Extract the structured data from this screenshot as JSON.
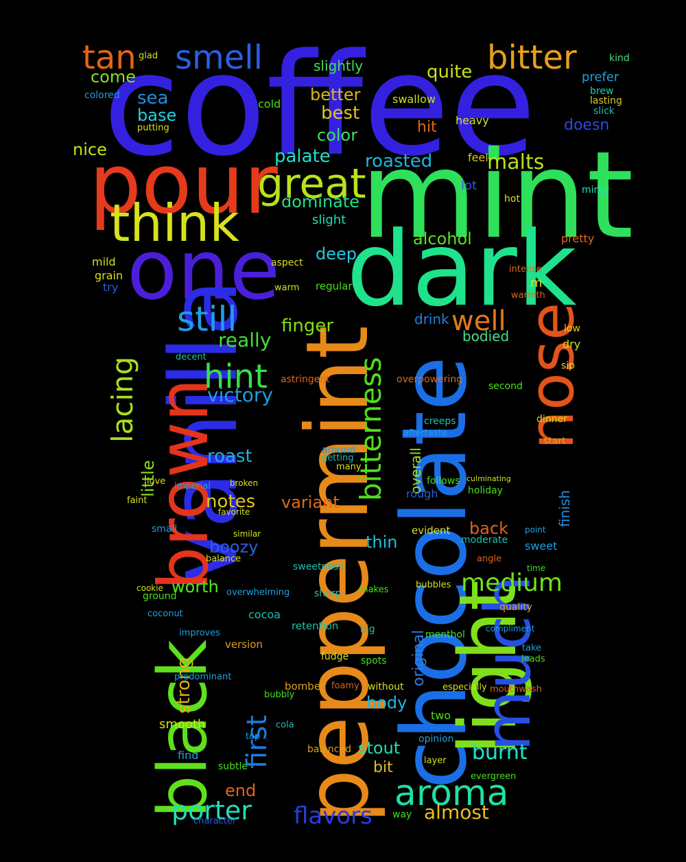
{
  "words": [
    {
      "text": "coffee",
      "color": "#3421e0"
    },
    {
      "text": "mint",
      "color": "#2fe05b"
    },
    {
      "text": "dark",
      "color": "#1fe28c"
    },
    {
      "text": "pour",
      "color": "#e63a1c"
    },
    {
      "text": "one",
      "color": "#4a1fd9"
    },
    {
      "text": "vanilla",
      "color": "#2a2ce6"
    },
    {
      "text": "black",
      "color": "#5ee01c"
    },
    {
      "text": "brown",
      "color": "#e3341c"
    },
    {
      "text": "peppermint",
      "color": "#e78a1a"
    },
    {
      "text": "chocolate",
      "color": "#1b6fe6"
    },
    {
      "text": "light",
      "color": "#7fe01a"
    },
    {
      "text": "much",
      "color": "#2650e3"
    },
    {
      "text": "nose",
      "color": "#e2541b"
    },
    {
      "text": "think",
      "color": "#d6e21b"
    },
    {
      "text": "great",
      "color": "#b9e21b"
    },
    {
      "text": "tan",
      "color": "#e3641b"
    },
    {
      "text": "smell",
      "color": "#2b5fe3"
    },
    {
      "text": "bitter",
      "color": "#e6a01b"
    },
    {
      "text": "still",
      "color": "#1f9fe6"
    },
    {
      "text": "hint",
      "color": "#35e04a"
    },
    {
      "text": "lacing",
      "color": "#a9e01c"
    },
    {
      "text": "aroma",
      "color": "#1fe0a5"
    },
    {
      "text": "porter",
      "color": "#1fe0b8"
    },
    {
      "text": "first",
      "color": "#1b7be0"
    },
    {
      "text": "flavors",
      "color": "#2a3de0"
    },
    {
      "text": "bitterness",
      "color": "#4ee01b"
    },
    {
      "text": "well",
      "color": "#e07a1b"
    },
    {
      "text": "medium",
      "color": "#72e01b"
    },
    {
      "text": "burnt",
      "color": "#1fe0c6"
    },
    {
      "text": "almost",
      "color": "#e6c21b"
    },
    {
      "text": "quite",
      "color": "#c9e01b"
    },
    {
      "text": "malts",
      "color": "#b8e01b"
    },
    {
      "text": "roasted",
      "color": "#1fb5e0"
    },
    {
      "text": "palate",
      "color": "#1fe0d2"
    },
    {
      "text": "dominate",
      "color": "#1fe08a"
    },
    {
      "text": "victory",
      "color": "#1f9ee0"
    },
    {
      "text": "really",
      "color": "#43e03a"
    },
    {
      "text": "finger",
      "color": "#7fe01b"
    },
    {
      "text": "color",
      "color": "#40e06a"
    },
    {
      "text": "best",
      "color": "#e0c51b"
    },
    {
      "text": "better",
      "color": "#e0b41b"
    },
    {
      "text": "sea",
      "color": "#1f90e0"
    },
    {
      "text": "base",
      "color": "#1fd3e0"
    },
    {
      "text": "come",
      "color": "#8ae01b"
    },
    {
      "text": "nice",
      "color": "#c6e01b"
    },
    {
      "text": "slightly",
      "color": "#40e05a"
    },
    {
      "text": "alcohol",
      "color": "#5ee01b"
    },
    {
      "text": "deep",
      "color": "#1fcbe0"
    },
    {
      "text": "slight",
      "color": "#1fe0bd"
    },
    {
      "text": "notes",
      "color": "#e0ca1b"
    },
    {
      "text": "roast",
      "color": "#1fb0e0"
    },
    {
      "text": "boozy",
      "color": "#2a60e0"
    },
    {
      "text": "worth",
      "color": "#49e01b"
    },
    {
      "text": "strong",
      "color": "#e0b01b"
    },
    {
      "text": "little",
      "color": "#8be01b"
    },
    {
      "text": "thin",
      "color": "#1fc0e0"
    },
    {
      "text": "original",
      "color": "#2f7de0"
    },
    {
      "text": "overall",
      "color": "#a1e01b"
    },
    {
      "text": "variant",
      "color": "#e06a1b"
    },
    {
      "text": "drink",
      "color": "#1f7fe0"
    },
    {
      "text": "bodied",
      "color": "#49e08a"
    },
    {
      "text": "finish",
      "color": "#1f8fe0"
    },
    {
      "text": "back",
      "color": "#e0641b"
    },
    {
      "text": "stout",
      "color": "#1fe0b0"
    },
    {
      "text": "body",
      "color": "#1fb8e0"
    },
    {
      "text": "bit",
      "color": "#e0c01b"
    },
    {
      "text": "end",
      "color": "#e0641b"
    },
    {
      "text": "smooth",
      "color": "#d6e01b"
    },
    {
      "text": "hit",
      "color": "#e0681b"
    },
    {
      "text": "cold",
      "color": "#49e01b"
    },
    {
      "text": "doesn",
      "color": "#2a4ce0"
    },
    {
      "text": "heavy",
      "color": "#d6e01b"
    },
    {
      "text": "swallow",
      "color": "#c9e01b"
    },
    {
      "text": "feel",
      "color": "#e0c51b"
    },
    {
      "text": "lot",
      "color": "#2a5ce0"
    },
    {
      "text": "hot",
      "color": "#e0e01b"
    },
    {
      "text": "minty",
      "color": "#1fe0b8"
    },
    {
      "text": "prefer",
      "color": "#1fa0e0"
    },
    {
      "text": "kind",
      "color": "#49e07a"
    },
    {
      "text": "brew",
      "color": "#1fd0b0"
    },
    {
      "text": "lasting",
      "color": "#e0d01b"
    },
    {
      "text": "slick",
      "color": "#1fc0b0"
    },
    {
      "text": "pretty",
      "color": "#e06a1b"
    },
    {
      "text": "intense",
      "color": "#e06a1b"
    },
    {
      "text": "warmth",
      "color": "#e06a1b"
    },
    {
      "text": "dry",
      "color": "#d6e01b"
    },
    {
      "text": "low",
      "color": "#e0d01b"
    },
    {
      "text": "sip",
      "color": "#d6e01b"
    },
    {
      "text": "second",
      "color": "#49e01b"
    },
    {
      "text": "dinner",
      "color": "#c9e01b"
    },
    {
      "text": "start",
      "color": "#e0a01b"
    },
    {
      "text": "sweet",
      "color": "#1fa0e0"
    },
    {
      "text": "moderate",
      "color": "#1fc0b0"
    },
    {
      "text": "holiday",
      "color": "#49e01b"
    },
    {
      "text": "rough",
      "color": "#2a5ce0"
    },
    {
      "text": "follows",
      "color": "#49e01b"
    },
    {
      "text": "quality",
      "color": "#e0a01b"
    },
    {
      "text": "bubbles",
      "color": "#d6e01b"
    },
    {
      "text": "menthol",
      "color": "#49e01b"
    },
    {
      "text": "mouthwash",
      "color": "#e0641b"
    },
    {
      "text": "leads",
      "color": "#49e01b"
    },
    {
      "text": "especially",
      "color": "#d6e01b"
    },
    {
      "text": "opinion",
      "color": "#1fa0e0"
    },
    {
      "text": "two",
      "color": "#49e01b"
    },
    {
      "text": "layer",
      "color": "#d6e01b"
    },
    {
      "text": "evergreen",
      "color": "#49e01b"
    },
    {
      "text": "balanced",
      "color": "#e0a01b"
    },
    {
      "text": "without",
      "color": "#d6e01b"
    },
    {
      "text": "fudge",
      "color": "#d6e01b"
    },
    {
      "text": "spots",
      "color": "#49e01b"
    },
    {
      "text": "big",
      "color": "#1fc0b0"
    },
    {
      "text": "cocoa",
      "color": "#1fc0b0"
    },
    {
      "text": "retention",
      "color": "#1fc0b0"
    },
    {
      "text": "version",
      "color": "#e0a01b"
    },
    {
      "text": "bomber",
      "color": "#e0a01b"
    },
    {
      "text": "foamy",
      "color": "#e0641b"
    },
    {
      "text": "bubbly",
      "color": "#49e01b"
    },
    {
      "text": "cola",
      "color": "#1fc0b0"
    },
    {
      "text": "find",
      "color": "#1fa0e0"
    },
    {
      "text": "subtle",
      "color": "#49e01b"
    },
    {
      "text": "character",
      "color": "#2a5ce0"
    },
    {
      "text": "way",
      "color": "#49e01b"
    },
    {
      "text": "predominant",
      "color": "#1fa0e0"
    },
    {
      "text": "overwhelming",
      "color": "#1fa0e0"
    },
    {
      "text": "sweetness",
      "color": "#1fc0b0"
    },
    {
      "text": "balance",
      "color": "#d6e01b"
    },
    {
      "text": "similar",
      "color": "#d6e01b"
    },
    {
      "text": "evident",
      "color": "#d6e01b"
    },
    {
      "text": "overpowering",
      "color": "#e06a1b"
    },
    {
      "text": "astringent",
      "color": "#e0641b"
    },
    {
      "text": "decent",
      "color": "#1fc0b0"
    },
    {
      "text": "mild",
      "color": "#d6e01b"
    },
    {
      "text": "grain",
      "color": "#d6e01b"
    },
    {
      "text": "try",
      "color": "#2a5ce0"
    },
    {
      "text": "m",
      "color": "#d6e01b"
    },
    {
      "text": "aspect",
      "color": "#d6e01b"
    },
    {
      "text": "regular",
      "color": "#49e01b"
    },
    {
      "text": "warm",
      "color": "#d6e01b"
    },
    {
      "text": "putting",
      "color": "#d6e01b"
    },
    {
      "text": "colored",
      "color": "#1fa0e0"
    },
    {
      "text": "glad",
      "color": "#d6e01b"
    },
    {
      "text": "imperial",
      "color": "#1fa0e0"
    },
    {
      "text": "love",
      "color": "#d6e01b"
    },
    {
      "text": "faint",
      "color": "#d6e01b"
    },
    {
      "text": "small",
      "color": "#1fa0e0"
    },
    {
      "text": "favorite",
      "color": "#d6e01b"
    },
    {
      "text": "broken",
      "color": "#d6e01b"
    },
    {
      "text": "creeps",
      "color": "#1fc0b0"
    },
    {
      "text": "aftertaste",
      "color": "#1fa0e0"
    },
    {
      "text": "many",
      "color": "#d6e01b"
    },
    {
      "text": "getting",
      "color": "#1fc0b0"
    },
    {
      "text": "around",
      "color": "#1fa0e0"
    },
    {
      "text": "sharp",
      "color": "#1fc0b0"
    },
    {
      "text": "makes",
      "color": "#49e01b"
    },
    {
      "text": "worth",
      "color": "#49e01b"
    },
    {
      "text": "ground",
      "color": "#49e01b"
    },
    {
      "text": "cookie",
      "color": "#d6e01b"
    },
    {
      "text": "coconut",
      "color": "#1fa0e0"
    },
    {
      "text": "improves",
      "color": "#1fa0e0"
    },
    {
      "text": "top",
      "color": "#1fa0e0"
    },
    {
      "text": "angle",
      "color": "#e0641b"
    },
    {
      "text": "time",
      "color": "#49e01b"
    },
    {
      "text": "point",
      "color": "#1fa0e0"
    },
    {
      "text": "culminating",
      "color": "#d6e01b"
    },
    {
      "text": "compliment",
      "color": "#1fa0e0"
    },
    {
      "text": "take",
      "color": "#1fa0e0"
    },
    {
      "text": "burnt",
      "color": "#1fe0c6"
    }
  ]
}
